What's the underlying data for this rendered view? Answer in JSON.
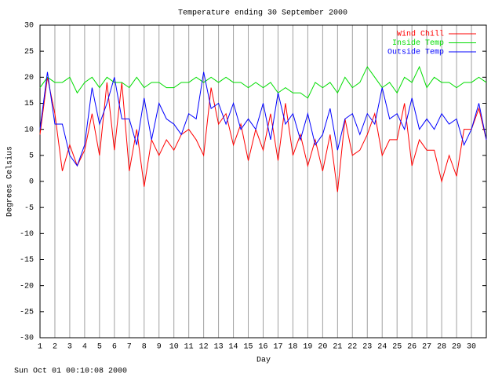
{
  "chart_data": {
    "type": "line",
    "title": "Temperature ending 30 September 2000",
    "x_label": "Day",
    "y_label": "Degrees Celsius",
    "caption": "Sun Oct 01 00:10:08 2000",
    "x": [
      1,
      1.5,
      2,
      2.5,
      3,
      3.5,
      4,
      4.5,
      5,
      5.5,
      6,
      6.5,
      7,
      7.5,
      8,
      8.5,
      9,
      9.5,
      10,
      10.5,
      11,
      11.5,
      12,
      12.5,
      13,
      13.5,
      14,
      14.5,
      15,
      15.5,
      16,
      16.5,
      17,
      17.5,
      18,
      18.5,
      19,
      19.5,
      20,
      20.5,
      21,
      21.5,
      22,
      22.5,
      23,
      23.5,
      24,
      24.5,
      25,
      25.5,
      26,
      26.5,
      27,
      27.5,
      28,
      28.5,
      29,
      29.5,
      30,
      30.5,
      31
    ],
    "series": [
      {
        "name": "Wind Chill",
        "color": "#ff0000",
        "values": [
          9,
          20,
          13,
          2,
          7,
          3,
          6,
          13,
          5,
          19,
          6,
          19,
          2,
          10,
          -1,
          8,
          5,
          8,
          6,
          9,
          10,
          8,
          5,
          18,
          11,
          13,
          7,
          11,
          4,
          10,
          6,
          13,
          4,
          15,
          5,
          9,
          3,
          8,
          2,
          9,
          -2,
          12,
          5,
          6,
          9,
          13,
          5,
          8,
          8,
          15,
          3,
          8,
          6,
          6,
          0,
          5,
          1,
          10,
          10,
          14,
          8
        ]
      },
      {
        "name": "Inside Temp",
        "color": "#00dd00",
        "values": [
          18,
          20,
          19,
          19,
          20,
          17,
          19,
          20,
          18,
          20,
          19,
          19,
          18,
          20,
          18,
          19,
          19,
          18,
          18,
          19,
          19,
          20,
          19,
          20,
          19,
          20,
          19,
          19,
          18,
          19,
          18,
          19,
          17,
          18,
          17,
          17,
          16,
          19,
          18,
          19,
          17,
          20,
          18,
          19,
          22,
          20,
          18,
          19,
          17,
          20,
          19,
          22,
          18,
          20,
          19,
          19,
          18,
          19,
          19,
          20,
          19
        ]
      },
      {
        "name": "Outside Temp",
        "color": "#0000ff",
        "values": [
          10,
          21,
          11,
          11,
          5,
          3,
          7,
          18,
          11,
          15,
          20,
          12,
          12,
          7,
          16,
          8,
          15,
          12,
          11,
          9,
          13,
          12,
          21,
          14,
          15,
          11,
          15,
          10,
          12,
          10,
          15,
          8,
          17,
          11,
          13,
          8,
          13,
          7,
          9,
          14,
          6,
          12,
          13,
          9,
          13,
          11,
          18,
          12,
          13,
          10,
          16,
          10,
          12,
          10,
          13,
          11,
          12,
          7,
          10,
          15,
          8
        ]
      }
    ],
    "xlim": [
      1,
      31
    ],
    "ylim": [
      -30,
      30
    ],
    "xticks": [
      1,
      2,
      3,
      4,
      5,
      6,
      7,
      8,
      9,
      10,
      11,
      12,
      13,
      14,
      15,
      16,
      17,
      18,
      19,
      20,
      21,
      22,
      23,
      24,
      25,
      26,
      27,
      28,
      29,
      30
    ],
    "yticks": [
      -30,
      -25,
      -20,
      -15,
      -10,
      -5,
      0,
      5,
      10,
      15,
      20,
      25,
      30
    ],
    "grid": true,
    "legend": "top-right"
  }
}
